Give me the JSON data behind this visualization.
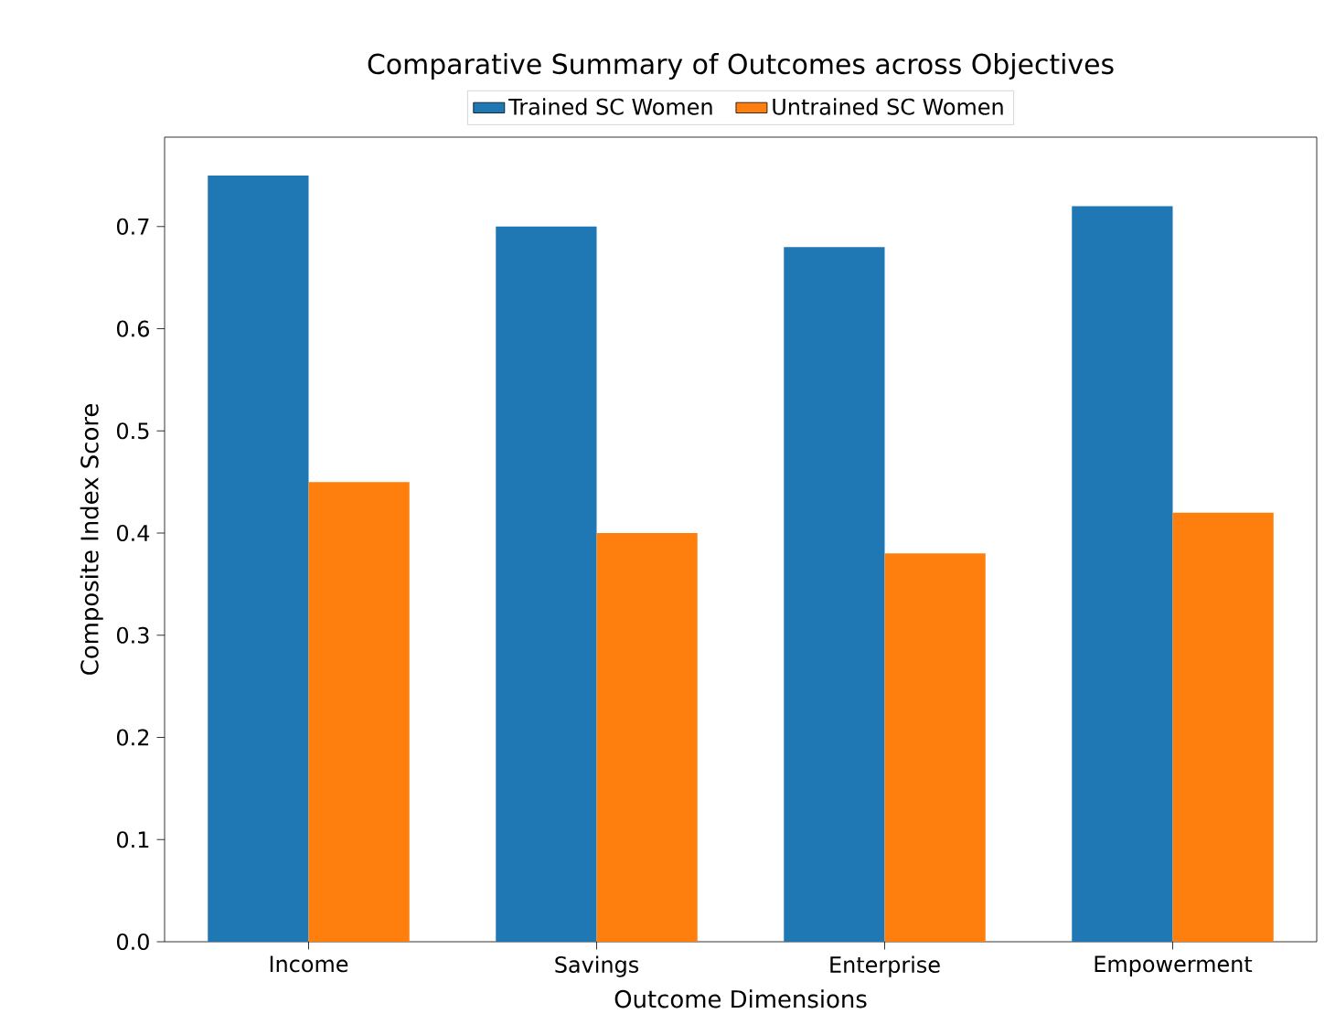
{
  "chart_data": {
    "type": "bar",
    "title": "Comparative Summary of Outcomes across Objectives",
    "xlabel": "Outcome Dimensions",
    "ylabel": "Composite Index Score",
    "categories": [
      "Income",
      "Savings",
      "Enterprise",
      "Empowerment"
    ],
    "series": [
      {
        "name": "Trained SC Women",
        "color": "#1f77b4",
        "values": [
          0.75,
          0.7,
          0.68,
          0.72
        ]
      },
      {
        "name": "Untrained SC Women",
        "color": "#ff7f0e",
        "values": [
          0.45,
          0.4,
          0.38,
          0.42
        ]
      }
    ],
    "ylim": [
      0,
      0.7875
    ],
    "yticks": [
      {
        "value": 0,
        "label": "0.0"
      },
      0.1,
      0.2,
      0.3,
      0.4,
      0.5,
      0.6,
      0.7
    ],
    "legend": "top",
    "grid": false
  }
}
